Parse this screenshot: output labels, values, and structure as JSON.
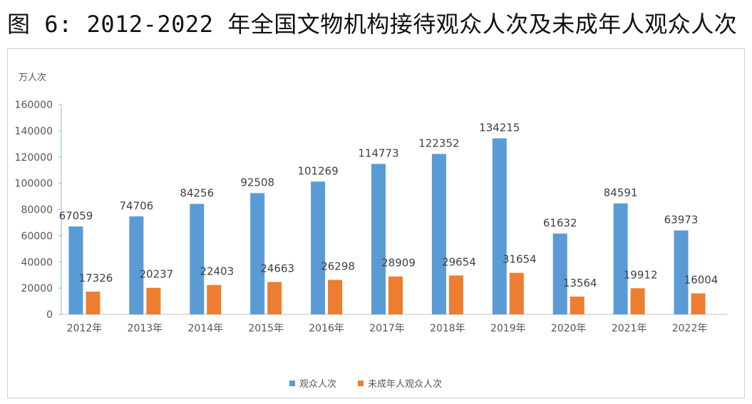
{
  "figure_title": "图 6: 2012-2022 年全国文物机构接待观众人次及未成年人观众人次",
  "chart_data": {
    "type": "bar",
    "title": "",
    "ylabel": "万人次",
    "xlabel": "",
    "categories": [
      "2012年",
      "2013年",
      "2014年",
      "2015年",
      "2016年",
      "2017年",
      "2018年",
      "2019年",
      "2020年",
      "2021年",
      "2022年"
    ],
    "series": [
      {
        "name": "观众人次",
        "color": "#5B9BD5",
        "values": [
          67059,
          74706,
          84256,
          92508,
          101269,
          114773,
          122352,
          134215,
          61632,
          84591,
          63973
        ]
      },
      {
        "name": "未成年人观众人次",
        "color": "#ED7D31",
        "values": [
          17326,
          20237,
          22403,
          24663,
          26298,
          28909,
          29654,
          31654,
          13564,
          19912,
          16004
        ]
      }
    ],
    "ylim": [
      0,
      160000
    ],
    "yticks": [
      0,
      20000,
      40000,
      60000,
      80000,
      100000,
      120000,
      140000,
      160000
    ],
    "grid": false,
    "legend_position": "bottom"
  }
}
